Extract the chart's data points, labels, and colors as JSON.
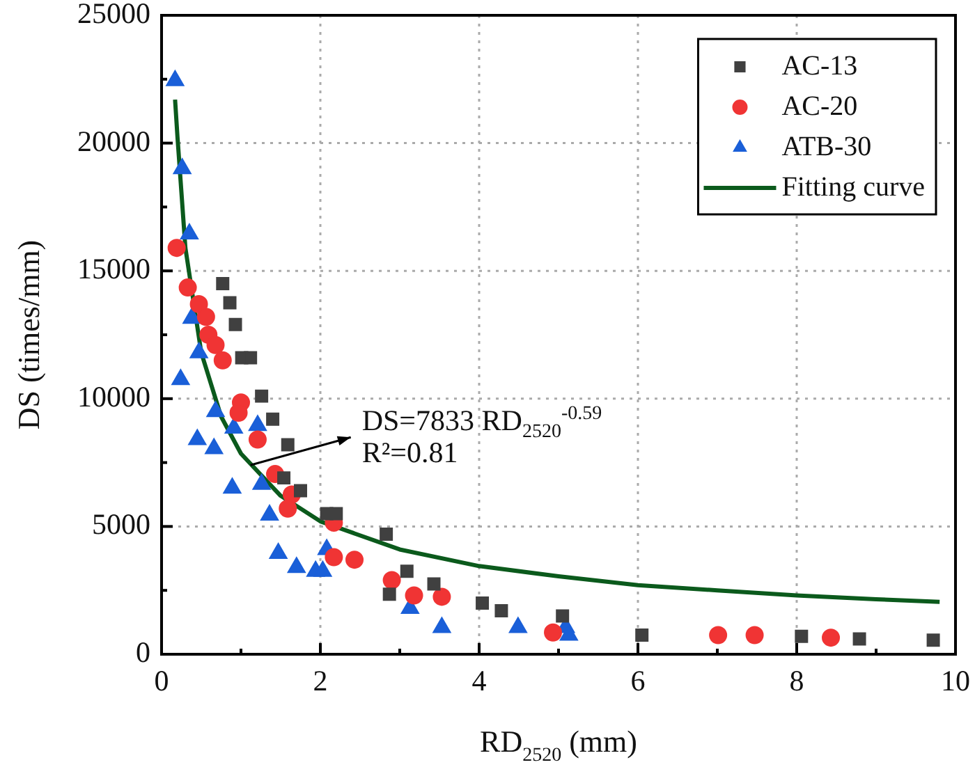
{
  "chart_data": {
    "type": "scatter",
    "xlabel": "RD$_{2520}$ (mm)",
    "ylabel": "DS (times/mm)",
    "xlim": [
      0,
      10
    ],
    "xticks": [
      0,
      {
        "value": 1,
        "label": null
      },
      2,
      {
        "value": 3,
        "label": null
      },
      4,
      {
        "value": 5,
        "label": null
      },
      6,
      {
        "value": 7,
        "label": null
      },
      8,
      {
        "value": 9,
        "label": null
      },
      10
    ],
    "ylim": [
      0,
      25000
    ],
    "yticks": [
      0,
      {
        "value": 2500,
        "label": null
      },
      5000,
      {
        "value": 7500,
        "label": null
      },
      10000,
      {
        "value": 12500,
        "label": null
      },
      15000,
      {
        "value": 17500,
        "label": null
      },
      20000,
      {
        "value": 22500,
        "label": null
      },
      25000
    ],
    "grid": true,
    "legend": "top right",
    "series": [
      {
        "name": "AC-13",
        "color": "#404040",
        "marker": "square",
        "x": [
          0.77,
          0.86,
          0.93,
          1.01,
          1.12,
          1.26,
          1.4,
          1.59,
          1.54,
          1.75,
          2.08,
          2.2,
          2.83,
          3.09,
          2.87,
          3.43,
          4.04,
          4.28,
          5.05,
          6.05,
          8.06,
          8.79,
          9.72
        ],
        "values": [
          14500,
          13750,
          12900,
          11600,
          11600,
          10100,
          9200,
          8200,
          6900,
          6400,
          5500,
          5500,
          4700,
          3250,
          2350,
          2750,
          2000,
          1700,
          1500,
          750,
          700,
          600,
          550
        ]
      },
      {
        "name": "AC-20",
        "color": "#f03434",
        "marker": "circle",
        "x": [
          0.19,
          0.33,
          0.47,
          0.56,
          0.59,
          0.68,
          0.77,
          1.0,
          0.97,
          1.21,
          1.43,
          1.64,
          1.59,
          2.17,
          2.17,
          2.43,
          2.9,
          3.18,
          3.53,
          4.93,
          7.01,
          7.47,
          8.43
        ],
        "values": [
          15900,
          14350,
          13700,
          13200,
          12500,
          12100,
          11500,
          9850,
          9450,
          8400,
          7050,
          6250,
          5700,
          5150,
          3800,
          3700,
          2900,
          2300,
          2250,
          850,
          750,
          750,
          650
        ]
      },
      {
        "name": "ATB-30",
        "color": "#1a5fd8",
        "marker": "triangle",
        "x": [
          0.17,
          0.26,
          0.35,
          0.38,
          0.47,
          0.24,
          0.68,
          0.91,
          1.21,
          0.45,
          0.66,
          0.89,
          1.26,
          1.36,
          1.47,
          1.7,
          1.94,
          2.03,
          2.08,
          3.13,
          3.53,
          4.49,
          5.09,
          5.13
        ],
        "values": [
          22450,
          19000,
          16450,
          13150,
          11800,
          10750,
          9500,
          8850,
          8950,
          8400,
          8050,
          6500,
          6650,
          5450,
          3950,
          3400,
          3250,
          3250,
          4100,
          1800,
          1050,
          1050,
          1050,
          750
        ]
      },
      {
        "name": "Fitting curve",
        "type": "line",
        "color": "#0b5a1c",
        "marker": "none",
        "x": [
          0.17,
          0.2,
          0.3,
          0.5,
          0.75,
          1,
          1.5,
          2,
          3,
          4,
          5,
          6,
          7,
          8,
          9,
          9.8
        ],
        "values": [
          21700,
          20250,
          15900,
          11800,
          9300,
          7850,
          6200,
          5200,
          4100,
          3450,
          3050,
          2700,
          2500,
          2300,
          2150,
          2050
        ]
      }
    ],
    "annotations": [
      {
        "text": "DS=7833 RD$_{2520}$$^{-0.59}$",
        "x": 1.12,
        "y": 7400
      },
      "R²=0.81"
    ]
  }
}
